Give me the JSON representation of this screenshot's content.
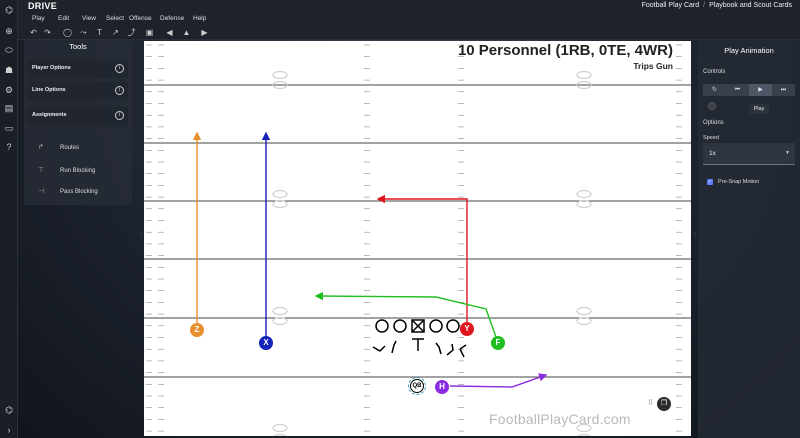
{
  "app": {
    "title": "DRIVE"
  },
  "breadcrumb": {
    "site": "Football Play Card",
    "page": "Playbook and Scout Cards"
  },
  "menu": [
    "Play",
    "Edit",
    "View",
    "Select",
    "Offense",
    "Defense",
    "Help"
  ],
  "rail_icons": [
    "add-icon",
    "football-icon",
    "team-icon",
    "gear-icon",
    "library-icon",
    "card-icon",
    "help-icon",
    "logo-icon",
    "expand-icon"
  ],
  "toolbar_icons": [
    "undo-icon",
    "redo-icon",
    "select-icon",
    "route-tool-icon",
    "text-icon",
    "arrow-icon",
    "curve-icon",
    "save-icon",
    "flip-left-icon",
    "flip-right-icon",
    "play-icon"
  ],
  "tools": {
    "title": "Tools",
    "sections": [
      "Player Options",
      "Line Options",
      "Assignments"
    ],
    "assignments": [
      "Routes",
      "Run Blocking",
      "Pass Blocking"
    ]
  },
  "field": {
    "title": "10 Personnel (1RB, 0TE, 4WR)",
    "formation": "Trips Gun",
    "watermark": "FootballPlayCard.com",
    "players": [
      {
        "label": "Z",
        "color": "#e8902e"
      },
      {
        "label": "X",
        "color": "#1424b8"
      },
      {
        "label": "Y",
        "color": "#e0161f"
      },
      {
        "label": "F",
        "color": "#1fbf1f"
      },
      {
        "label": "H",
        "color": "#8b2be0"
      },
      {
        "label": "QB",
        "color": "#ffffff"
      }
    ]
  },
  "animation": {
    "title": "Play Animation",
    "controls_label": "Controls",
    "tooltip": "Play",
    "options_label": "Options",
    "speed_label": "Speed",
    "speed_value": "1x",
    "pre_snap_label": "Pre-Snap Motion",
    "pre_snap_checked": true
  }
}
